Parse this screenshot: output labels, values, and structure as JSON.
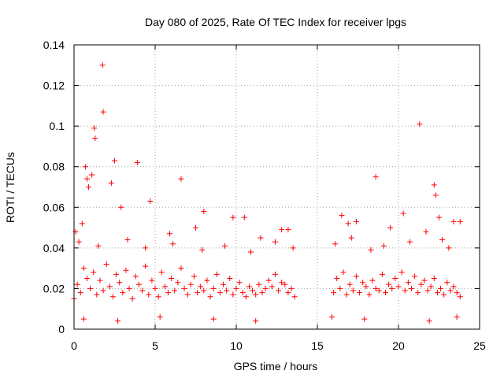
{
  "chart_data": {
    "type": "scatter",
    "title": "Day 080 of 2025, Rate Of TEC Index for receiver lpgs",
    "xlabel": "GPS time / hours",
    "ylabel": "ROTI / TECUs",
    "xlim": [
      0,
      25
    ],
    "ylim": [
      0,
      0.14
    ],
    "xticks": [
      0,
      5,
      10,
      15,
      20,
      25
    ],
    "xtick_labels": [
      "0",
      "5",
      "10",
      "15",
      "20",
      "25"
    ],
    "yticks": [
      0,
      0.02,
      0.04,
      0.06,
      0.08,
      0.1,
      0.12,
      0.14
    ],
    "ytick_labels": [
      "0",
      "0.02",
      "0.04",
      "0.06",
      "0.08",
      "0.1",
      "0.12",
      "0.14"
    ],
    "grid": true,
    "marker": "+",
    "color": "#ff0000",
    "series": [
      {
        "name": "ROTI",
        "x": [
          0.0,
          0.2,
          0.4,
          0.6,
          0.8,
          1.0,
          1.2,
          1.4,
          1.6,
          1.8,
          2.0,
          2.2,
          2.4,
          2.6,
          2.8,
          3.0,
          3.2,
          3.4,
          3.6,
          3.8,
          4.0,
          4.2,
          4.4,
          4.6,
          4.8,
          5.0,
          5.2,
          5.4,
          5.6,
          5.8,
          6.0,
          6.2,
          6.4,
          6.6,
          6.8,
          7.0,
          7.2,
          7.4,
          7.6,
          7.8,
          8.0,
          8.2,
          8.4,
          8.6,
          8.8,
          9.0,
          9.2,
          9.4,
          9.6,
          9.8,
          10.0,
          10.2,
          10.4,
          10.6,
          10.8,
          11.0,
          11.2,
          11.4,
          11.6,
          11.8,
          12.0,
          12.2,
          12.4,
          12.6,
          12.8,
          13.0,
          13.2,
          13.4,
          13.6,
          16.0,
          16.2,
          16.4,
          16.6,
          16.8,
          17.0,
          17.2,
          17.4,
          17.6,
          17.8,
          18.0,
          18.2,
          18.4,
          18.6,
          18.8,
          19.0,
          19.2,
          19.4,
          19.6,
          19.8,
          20.0,
          20.2,
          20.4,
          20.6,
          20.8,
          21.0,
          21.2,
          21.4,
          21.6,
          21.8,
          22.0,
          22.2,
          22.4,
          22.6,
          22.8,
          23.0,
          23.2,
          23.4,
          23.6,
          23.8,
          1.76,
          1.8,
          1.25,
          1.3,
          1.1,
          2.5,
          3.9,
          6.6,
          21.3,
          22.2,
          22.3,
          18.6,
          0.7,
          0.8,
          0.9,
          2.3,
          4.7,
          8.0,
          9.8,
          10.5,
          12.8,
          16.5,
          17.4,
          20.3,
          22.5,
          23.8,
          0.1,
          0.5,
          2.9,
          5.9,
          7.5,
          11.5,
          13.2,
          16.9,
          19.5,
          21.7,
          23.4,
          0.3,
          1.5,
          3.3,
          4.4,
          6.1,
          7.9,
          9.3,
          10.9,
          12.4,
          13.5,
          16.1,
          17.1,
          18.3,
          19.1,
          20.7,
          22.7,
          23.1,
          0.6,
          2.7,
          5.3,
          8.6,
          11.2,
          15.9,
          17.9,
          21.9,
          23.6
        ],
        "y": [
          0.015,
          0.022,
          0.018,
          0.03,
          0.025,
          0.02,
          0.028,
          0.017,
          0.024,
          0.019,
          0.032,
          0.021,
          0.016,
          0.027,
          0.023,
          0.018,
          0.029,
          0.02,
          0.015,
          0.026,
          0.022,
          0.019,
          0.031,
          0.017,
          0.024,
          0.02,
          0.016,
          0.028,
          0.021,
          0.018,
          0.025,
          0.019,
          0.023,
          0.03,
          0.02,
          0.017,
          0.022,
          0.026,
          0.018,
          0.021,
          0.019,
          0.024,
          0.016,
          0.02,
          0.027,
          0.018,
          0.022,
          0.019,
          0.025,
          0.017,
          0.02,
          0.023,
          0.018,
          0.016,
          0.021,
          0.019,
          0.017,
          0.022,
          0.018,
          0.02,
          0.024,
          0.021,
          0.027,
          0.019,
          0.023,
          0.022,
          0.018,
          0.02,
          0.016,
          0.018,
          0.025,
          0.02,
          0.028,
          0.017,
          0.022,
          0.019,
          0.026,
          0.018,
          0.023,
          0.021,
          0.017,
          0.024,
          0.02,
          0.019,
          0.027,
          0.018,
          0.022,
          0.02,
          0.025,
          0.021,
          0.028,
          0.019,
          0.023,
          0.02,
          0.026,
          0.018,
          0.022,
          0.024,
          0.019,
          0.021,
          0.025,
          0.018,
          0.02,
          0.017,
          0.023,
          0.019,
          0.021,
          0.018,
          0.016,
          0.13,
          0.107,
          0.099,
          0.094,
          0.076,
          0.083,
          0.082,
          0.074,
          0.101,
          0.071,
          0.066,
          0.075,
          0.08,
          0.074,
          0.07,
          0.072,
          0.063,
          0.058,
          0.055,
          0.055,
          0.049,
          0.056,
          0.053,
          0.057,
          0.055,
          0.053,
          0.048,
          0.052,
          0.06,
          0.047,
          0.05,
          0.045,
          0.049,
          0.052,
          0.05,
          0.048,
          0.053,
          0.043,
          0.041,
          0.044,
          0.04,
          0.042,
          0.039,
          0.041,
          0.038,
          0.043,
          0.04,
          0.042,
          0.045,
          0.039,
          0.041,
          0.043,
          0.044,
          0.04,
          0.005,
          0.004,
          0.006,
          0.005,
          0.004,
          0.006,
          0.005,
          0.004,
          0.006
        ]
      }
    ]
  }
}
